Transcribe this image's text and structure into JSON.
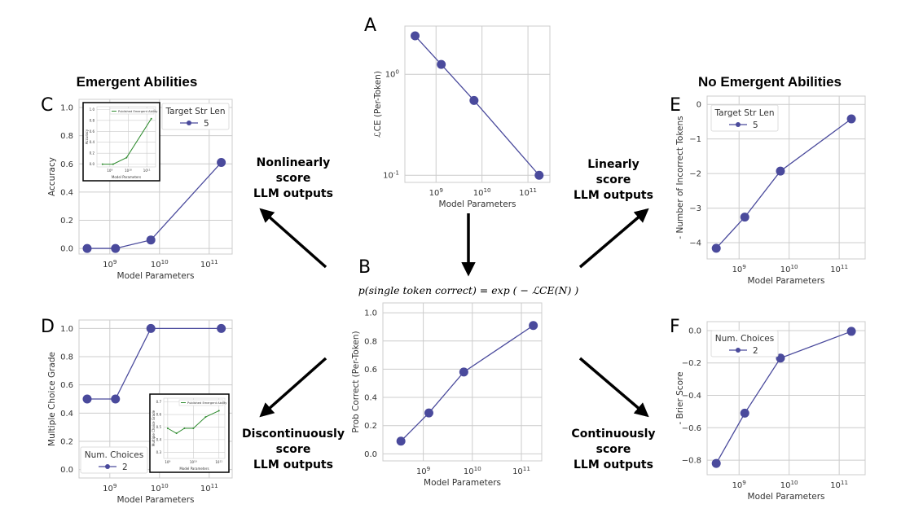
{
  "titles": {
    "left": "Emergent Abilities",
    "right": "No Emergent Abilities"
  },
  "captions": {
    "nonlinear": [
      "Nonlinearly",
      "score",
      "LLM outputs"
    ],
    "linear": [
      "Linearly",
      "score",
      "LLM outputs"
    ],
    "discontinuous": [
      "Discontinuously",
      "score",
      "LLM outputs"
    ],
    "continuous": [
      "Continuously",
      "score",
      "LLM outputs"
    ]
  },
  "formula": "p(single token correct) = exp ( − ℒCE(N) )",
  "colors": {
    "series": "#4a4a9c",
    "inset": "#2e8b2e",
    "grid": "#cccccc"
  },
  "chart_data": [
    {
      "panel": "A",
      "type": "line",
      "xlabel": "Model Parameters",
      "ylabel": "ℒCE (Per-Token)",
      "xscale": "log",
      "yscale": "log",
      "x": [
        350000000.0,
        1300000000.0,
        6700000000.0,
        175000000000.0
      ],
      "values": [
        2.4,
        1.25,
        0.55,
        0.1
      ],
      "xlim": [
        210000000.0,
        300000000000.0
      ],
      "ylim": [
        0.085,
        3.0
      ],
      "xticks": [
        1000000000.0,
        10000000000.0,
        100000000000.0
      ],
      "xtick_labels": [
        "10^9",
        "10^10",
        "10^11"
      ],
      "yticks": [
        1,
        0.1
      ],
      "ytick_labels": [
        "10^0",
        "10^-1"
      ],
      "grid": true
    },
    {
      "panel": "B",
      "type": "line",
      "xlabel": "Model Parameters",
      "ylabel": "Prob Correct (Per-Token)",
      "xscale": "log",
      "x": [
        350000000.0,
        1300000000.0,
        6700000000.0,
        175000000000.0
      ],
      "values": [
        0.09,
        0.29,
        0.58,
        0.91
      ],
      "xlim": [
        150000000.0,
        260000000000.0
      ],
      "ylim": [
        -0.05,
        1.07
      ],
      "xticks": [
        1000000000.0,
        10000000000.0,
        100000000000.0
      ],
      "xtick_labels": [
        "10^9",
        "10^10",
        "10^11"
      ],
      "yticks": [
        0,
        0.2,
        0.4,
        0.6,
        0.8,
        1.0
      ],
      "ytick_labels": [
        "0.0",
        "0.2",
        "0.4",
        "0.6",
        "0.8",
        "1.0"
      ],
      "grid": true
    },
    {
      "panel": "C",
      "type": "line",
      "xlabel": "Model Parameters",
      "ylabel": "Accuracy",
      "xscale": "log",
      "x": [
        350000000.0,
        1300000000.0,
        6700000000.0,
        175000000000.0
      ],
      "values": [
        0.0,
        0.0,
        0.06,
        0.61
      ],
      "xlim": [
        240000000.0,
        290000000000.0
      ],
      "ylim": [
        -0.04,
        1.058
      ],
      "xticks": [
        1000000000.0,
        10000000000.0,
        100000000000.0
      ],
      "xtick_labels": [
        "10^9",
        "10^10",
        "10^11"
      ],
      "yticks": [
        0,
        0.2,
        0.4,
        0.6,
        0.8,
        1.0
      ],
      "ytick_labels": [
        "0.0",
        "0.2",
        "0.4",
        "0.6",
        "0.8",
        "1.0"
      ],
      "grid": true,
      "legend": {
        "title": "Target Str Len",
        "entries": [
          "5"
        ],
        "placement": "top-right"
      },
      "inset": {
        "legend": "Published Emergent Ability",
        "xlabel": "Model Parameters",
        "ylabel": "Accuracy",
        "x": [
          400000000.0,
          1500000000.0,
          8000000000.0,
          175000000000.0
        ],
        "values": [
          0.0,
          0.0,
          0.12,
          0.83
        ],
        "xlim": [
          200000000.0,
          300000000000.0
        ],
        "ylim": [
          -0.05,
          1.05
        ],
        "xticks": [
          1000000000.0,
          10000000000.0,
          100000000000.0
        ],
        "xtick_labels": [
          "10^9",
          "10^10",
          "10^11"
        ],
        "yticks": [
          0,
          0.2,
          0.4,
          0.6,
          0.8,
          1.0
        ],
        "ytick_labels": [
          "0.0",
          "0.2",
          "0.4",
          "0.6",
          "0.8",
          "1.0"
        ]
      }
    },
    {
      "panel": "D",
      "type": "line",
      "xlabel": "Model Parameters",
      "ylabel": "Multiple Choice Grade",
      "xscale": "log",
      "x": [
        350000000.0,
        1300000000.0,
        6700000000.0,
        175000000000.0
      ],
      "values": [
        0.5,
        0.5,
        1.0,
        1.0
      ],
      "xlim": [
        240000000.0,
        290000000000.0
      ],
      "ylim": [
        -0.06,
        1.06
      ],
      "xticks": [
        1000000000.0,
        10000000000.0,
        100000000000.0
      ],
      "xtick_labels": [
        "10^9",
        "10^10",
        "10^11"
      ],
      "yticks": [
        0,
        0.2,
        0.4,
        0.6,
        0.8,
        1.0
      ],
      "ytick_labels": [
        "0.0",
        "0.2",
        "0.4",
        "0.6",
        "0.8",
        "1.0"
      ],
      "grid": true,
      "legend": {
        "title": "Num. Choices",
        "entries": [
          "2"
        ],
        "placement": "bottom-left"
      },
      "inset": {
        "legend": "Published Emergent Ability",
        "xlabel": "Model Parameters",
        "ylabel": "Multiple Choice Grade",
        "x": [
          1000000000.0,
          2200000000.0,
          4500000000.0,
          10000000000.0,
          30000000000.0,
          100000000000.0
        ],
        "values": [
          0.49,
          0.45,
          0.49,
          0.49,
          0.58,
          0.63
        ],
        "xlim": [
          700000000.0,
          170000000000.0
        ],
        "ylim": [
          0.25,
          0.73
        ],
        "xticks": [
          1000000000.0,
          10000000000.0,
          100000000000.0
        ],
        "xtick_labels": [
          "10^9",
          "10^10",
          "10^11"
        ],
        "yticks": [
          0.3,
          0.4,
          0.5,
          0.6,
          0.7
        ],
        "ytick_labels": [
          "0.3",
          "0.4",
          "0.5",
          "0.6",
          "0.7"
        ]
      }
    },
    {
      "panel": "E",
      "type": "line",
      "xlabel": "Model Parameters",
      "ylabel": "- Number of Incorrect Tokens",
      "xscale": "log",
      "x": [
        350000000.0,
        1300000000.0,
        6700000000.0,
        175000000000.0
      ],
      "values": [
        -4.16,
        -3.26,
        -1.93,
        -0.42
      ],
      "xlim": [
        230000000.0,
        330000000000.0
      ],
      "ylim": [
        -4.47,
        0.24
      ],
      "xticks": [
        1000000000.0,
        10000000000.0,
        100000000000.0
      ],
      "xtick_labels": [
        "10^9",
        "10^10",
        "10^11"
      ],
      "yticks": [
        0,
        -1,
        -2,
        -3,
        -4
      ],
      "ytick_labels": [
        "0",
        "−1",
        "−2",
        "−3",
        "−4"
      ],
      "grid": true,
      "legend": {
        "title": "Target Str Len",
        "entries": [
          "5"
        ],
        "placement": "top-left"
      }
    },
    {
      "panel": "F",
      "type": "line",
      "xlabel": "Model Parameters",
      "ylabel": "- Brier Score",
      "xscale": "log",
      "x": [
        350000000.0,
        1300000000.0,
        6700000000.0,
        175000000000.0
      ],
      "values": [
        -0.82,
        -0.51,
        -0.17,
        -0.005
      ],
      "xlim": [
        230000000.0,
        330000000000.0
      ],
      "ylim": [
        -0.89,
        0.055
      ],
      "xticks": [
        1000000000.0,
        10000000000.0,
        100000000000.0
      ],
      "xtick_labels": [
        "10^9",
        "10^10",
        "10^11"
      ],
      "yticks": [
        0,
        -0.2,
        -0.4,
        -0.6,
        -0.8
      ],
      "ytick_labels": [
        "0.0",
        "−0.2",
        "−0.4",
        "−0.6",
        "−0.8"
      ],
      "grid": true,
      "legend": {
        "title": "Num. Choices",
        "entries": [
          "2"
        ],
        "placement": "top-left"
      }
    }
  ]
}
